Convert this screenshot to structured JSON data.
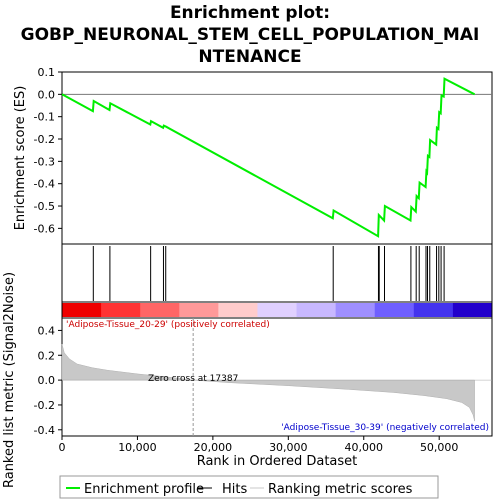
{
  "chart_data": {
    "type": "line",
    "title_lines": [
      "Enrichment plot:",
      "GOBP_NEURONAL_STEM_CELL_POPULATION_MAI",
      "NTENANCE"
    ],
    "top_panel": {
      "ylabel": "Enrichment score (ES)",
      "ylim": [
        -0.67,
        0.1
      ],
      "yticks": [
        0.1,
        0.0,
        -0.1,
        -0.2,
        -0.3,
        -0.4,
        -0.5,
        -0.6
      ],
      "ytick_labels": [
        "0.1",
        "0.0",
        "-0.1",
        "-0.2",
        "-0.3",
        "-0.4",
        "-0.5",
        "-0.6"
      ],
      "series": [
        {
          "name": "Enrichment profile",
          "color": "#00ee00",
          "x": [
            0,
            4100,
            4200,
            6300,
            6400,
            11700,
            11800,
            13400,
            13500,
            13800,
            35900,
            36000,
            41900,
            42000,
            42700,
            42800,
            46200,
            46300,
            46900,
            47000,
            47300,
            47400,
            48200,
            48300,
            48400,
            48500,
            48700,
            48800,
            49600,
            49700,
            49900,
            50000,
            50200,
            50300,
            50600,
            50700,
            54700
          ],
          "y": [
            0.0,
            -0.075,
            -0.03,
            -0.07,
            -0.04,
            -0.135,
            -0.12,
            -0.15,
            -0.14,
            -0.145,
            -0.555,
            -0.52,
            -0.635,
            -0.54,
            -0.565,
            -0.5,
            -0.565,
            -0.505,
            -0.525,
            -0.455,
            -0.465,
            -0.395,
            -0.415,
            -0.345,
            -0.35,
            -0.275,
            -0.28,
            -0.205,
            -0.225,
            -0.15,
            -0.155,
            -0.08,
            -0.085,
            -0.005,
            -0.01,
            0.07,
            0.0
          ]
        }
      ]
    },
    "hits": [
      4150,
      6350,
      11750,
      13450,
      13750,
      35950,
      41950,
      42050,
      42750,
      46250,
      46950,
      47350,
      48250,
      48450,
      48750,
      49650,
      49950,
      50250,
      50650
    ],
    "bottom_panel": {
      "ylabel": "Ranked list metric (Signal2Noise)",
      "ylim": [
        -0.45,
        0.5
      ],
      "yticks": [
        0.4,
        0.2,
        0.0,
        -0.2,
        -0.4
      ],
      "ytick_labels": [
        "0.4",
        "0.2",
        "0.0",
        "-0.2",
        "-0.4"
      ],
      "metric_curve_x": [
        0,
        300,
        1000,
        2000,
        4000,
        6000,
        10000,
        14000,
        17387,
        22000,
        30000,
        38000,
        44000,
        48000,
        51000,
        53000,
        54000,
        54500,
        54700
      ],
      "metric_curve_y": [
        0.29,
        0.22,
        0.17,
        0.13,
        0.1,
        0.08,
        0.05,
        0.025,
        0.0,
        -0.02,
        -0.045,
        -0.075,
        -0.1,
        -0.125,
        -0.15,
        -0.18,
        -0.22,
        -0.28,
        -0.33
      ],
      "zero_cross": 17387,
      "zero_cross_label": "Zero cross at 17387",
      "positive_label": "'Adipose-Tissue_20-29' (positively correlated)",
      "negative_label": "'Adipose-Tissue_30-39' (negatively correlated)"
    },
    "xlabel": "Rank in Ordered Dataset",
    "xlim": [
      0,
      57000
    ],
    "xticks": [
      0,
      10000,
      20000,
      30000,
      40000,
      50000
    ],
    "xtick_labels": [
      "0",
      "10,000",
      "20,000",
      "30,000",
      "40,000",
      "50,000"
    ],
    "ranking_bar_colors": [
      "#ee0000",
      "#ff3333",
      "#ff6666",
      "#ff9999",
      "#ffcccc",
      "#e0d0ff",
      "#c8b8ff",
      "#9f8fff",
      "#6f5fff",
      "#4433ee",
      "#2200cc"
    ],
    "legend": [
      {
        "label": "Enrichment profile",
        "color": "#00ee00"
      },
      {
        "label": "Hits",
        "color": "#000000"
      },
      {
        "label": "Ranking metric scores",
        "color": "#c8c8c8"
      }
    ]
  }
}
